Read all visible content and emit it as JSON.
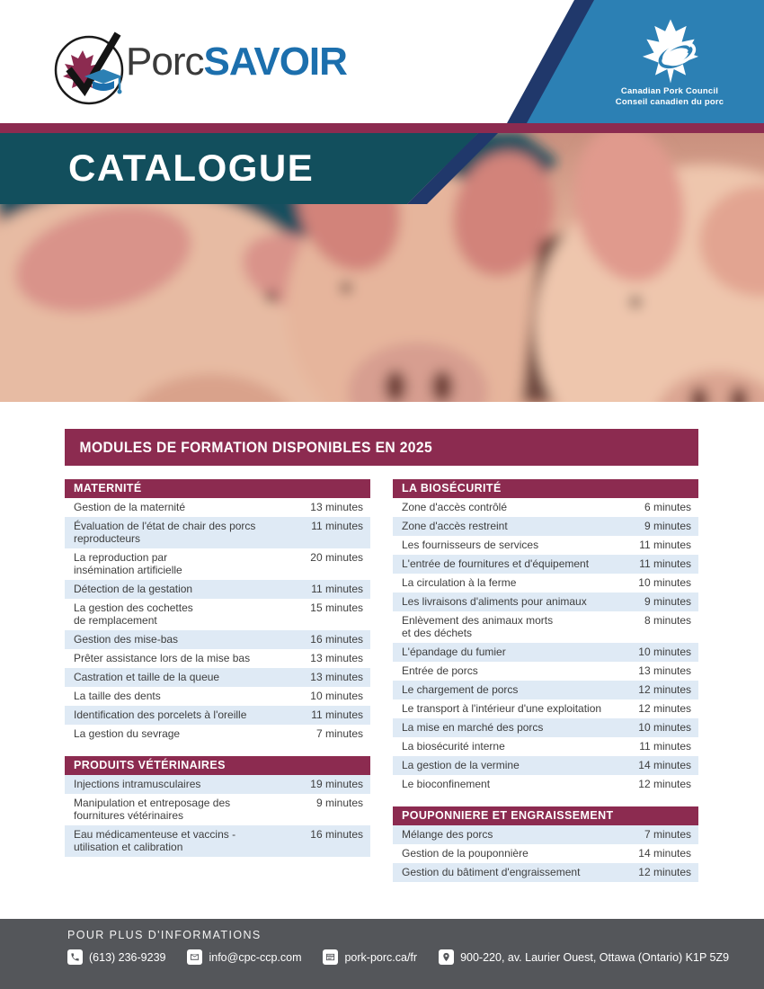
{
  "brand": {
    "logo_regular": "Porc",
    "logo_bold": "SAVOIR"
  },
  "council": {
    "line1": "Canadian Pork Council",
    "line2": "Conseil canadien du porc"
  },
  "banner": {
    "title": "CATALOGUE"
  },
  "section": {
    "title": "MODULES DE FORMATION DISPONIBLES EN 2025"
  },
  "colors": {
    "maroon": "#8C2B50",
    "blue": "#2C80B4",
    "navy": "#20386B",
    "teal": "#124F5D",
    "footer_gray": "#54565A",
    "row_alt": "#DFEAF5"
  },
  "tables": [
    {
      "title": "MATERNITÉ",
      "column": "left",
      "alt_start": 0,
      "rows": [
        {
          "label": "Gestion de la maternité",
          "duration": "13 minutes"
        },
        {
          "label": "Évaluation de l'état de chair des porcs\nreproducteurs",
          "duration": "11 minutes"
        },
        {
          "label": "La reproduction par\ninsémination artificielle",
          "duration": "20 minutes"
        },
        {
          "label": "Détection de la gestation",
          "duration": "11 minutes"
        },
        {
          "label": "La gestion des cochettes\nde remplacement",
          "duration": "15 minutes"
        },
        {
          "label": "Gestion des mise-bas",
          "duration": "16 minutes"
        },
        {
          "label": "Prêter assistance lors de la mise bas",
          "duration": "13 minutes"
        },
        {
          "label": "Castration et taille de la queue",
          "duration": "13 minutes"
        },
        {
          "label": "La taille des dents",
          "duration": "10 minutes"
        },
        {
          "label": "Identification des porcelets à l'oreille",
          "duration": "11 minutes"
        },
        {
          "label": "La gestion du sevrage",
          "duration": "7 minutes"
        }
      ]
    },
    {
      "title": "PRODUITS VÉTÉRINAIRES",
      "column": "left",
      "alt_start": 1,
      "rows": [
        {
          "label": "Injections intramusculaires",
          "duration": "19 minutes"
        },
        {
          "label": "Manipulation et entreposage des\nfournitures vétérinaires",
          "duration": "9 minutes"
        },
        {
          "label": "Eau médicamenteuse et vaccins -\nutilisation et calibration",
          "duration": "16 minutes"
        }
      ]
    },
    {
      "title": "LA BIOSÉCURITÉ",
      "column": "right",
      "alt_start": 0,
      "rows": [
        {
          "label": "Zone d'accès contrôlé",
          "duration": "6 minutes"
        },
        {
          "label": "Zone d'accès restreint",
          "duration": "9 minutes"
        },
        {
          "label": "Les fournisseurs de services",
          "duration": "11 minutes"
        },
        {
          "label": "L'entrée de fournitures et d'équipement",
          "duration": "11 minutes"
        },
        {
          "label": "La circulation à la ferme",
          "duration": "10 minutes"
        },
        {
          "label": "Les livraisons d'aliments pour animaux",
          "duration": "9 minutes"
        },
        {
          "label": "Enlèvement des animaux morts\net des déchets",
          "duration": "8 minutes"
        },
        {
          "label": "L'épandage du fumier",
          "duration": "10 minutes"
        },
        {
          "label": "Entrée de porcs",
          "duration": "13 minutes"
        },
        {
          "label": "Le chargement de porcs",
          "duration": "12 minutes"
        },
        {
          "label": "Le transport à l'intérieur d'une exploitation",
          "duration": "12 minutes"
        },
        {
          "label": "La mise en marché des porcs",
          "duration": "10 minutes"
        },
        {
          "label": "La biosécurité interne",
          "duration": "11 minutes"
        },
        {
          "label": "La gestion de la vermine",
          "duration": "14 minutes"
        },
        {
          "label": "Le bioconfinement",
          "duration": "12 minutes"
        }
      ]
    },
    {
      "title": "POUPONNIERE ET ENGRAISSEMENT",
      "column": "right",
      "alt_start": 1,
      "rows": [
        {
          "label": "Mélange des porcs",
          "duration": "7 minutes"
        },
        {
          "label": "Gestion de la pouponnière",
          "duration": "14 minutes"
        },
        {
          "label": "Gestion du bâtiment d'engraissement",
          "duration": "12 minutes"
        }
      ]
    }
  ],
  "footer": {
    "heading": "POUR PLUS D'INFORMATIONS",
    "contacts": [
      {
        "icon": "phone-icon",
        "text": "(613) 236-9239"
      },
      {
        "icon": "email-icon",
        "text": "info@cpc-ccp.com"
      },
      {
        "icon": "website-icon",
        "text": "pork-porc.ca/fr"
      },
      {
        "icon": "location-icon",
        "text": "900-220, av. Laurier Ouest, Ottawa (Ontario) K1P 5Z9"
      }
    ]
  }
}
